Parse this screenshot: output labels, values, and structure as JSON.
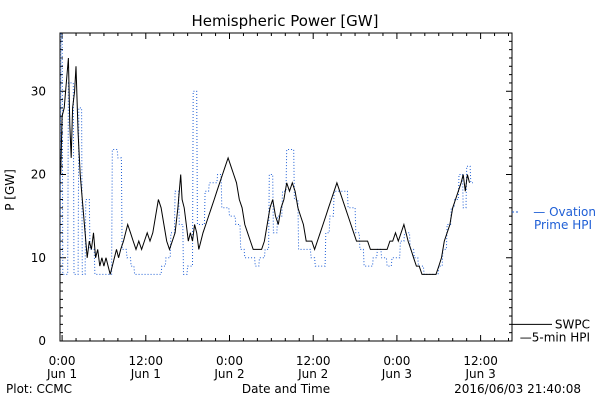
{
  "chart_data": {
    "type": "line",
    "title": "Hemispheric Power [GW]",
    "xlabel": "Date and Time",
    "ylabel": "P [GW]",
    "ylim": [
      0,
      37
    ],
    "xlim": [
      -0.3,
      64.5
    ],
    "yticks": [
      0,
      10,
      20,
      30
    ],
    "xticks": [
      {
        "x": 0,
        "time": "0:00",
        "day": "Jun 1"
      },
      {
        "x": 12,
        "time": "12:00",
        "day": "Jun 1"
      },
      {
        "x": 24,
        "time": "0:00",
        "day": "Jun 2"
      },
      {
        "x": 36,
        "time": "12:00",
        "day": "Jun 2"
      },
      {
        "x": 48,
        "time": "0:00",
        "day": "Jun 3"
      },
      {
        "x": 60,
        "time": "12:00",
        "day": "Jun 3"
      }
    ],
    "grid": false,
    "legend_position": "right",
    "series": [
      {
        "name": "SWPC 5-min HPI",
        "legend_lines": [
          "SWPC",
          "5-min HPI"
        ],
        "color": "#000000",
        "style": "solid",
        "points": [
          [
            -0.2,
            20
          ],
          [
            0.0,
            27
          ],
          [
            0.3,
            28
          ],
          [
            0.6,
            31
          ],
          [
            0.9,
            34
          ],
          [
            1.1,
            26
          ],
          [
            1.3,
            22
          ],
          [
            1.5,
            28
          ],
          [
            1.8,
            30
          ],
          [
            2.0,
            33
          ],
          [
            2.3,
            25
          ],
          [
            2.6,
            20
          ],
          [
            3.0,
            16
          ],
          [
            3.3,
            13
          ],
          [
            3.6,
            10
          ],
          [
            3.9,
            12
          ],
          [
            4.2,
            11
          ],
          [
            4.5,
            13
          ],
          [
            4.8,
            10
          ],
          [
            5.1,
            11
          ],
          [
            5.4,
            9
          ],
          [
            5.7,
            10
          ],
          [
            6.0,
            9
          ],
          [
            6.3,
            10
          ],
          [
            6.6,
            9
          ],
          [
            6.9,
            8
          ],
          [
            7.2,
            9
          ],
          [
            7.5,
            10
          ],
          [
            7.8,
            11
          ],
          [
            8.1,
            10
          ],
          [
            8.4,
            11
          ],
          [
            8.8,
            12
          ],
          [
            9.1,
            13
          ],
          [
            9.4,
            14
          ],
          [
            9.8,
            13
          ],
          [
            10.2,
            12
          ],
          [
            10.6,
            11
          ],
          [
            11.0,
            12
          ],
          [
            11.4,
            11
          ],
          [
            11.8,
            12
          ],
          [
            12.2,
            13
          ],
          [
            12.6,
            12
          ],
          [
            13.0,
            13
          ],
          [
            13.4,
            15
          ],
          [
            13.8,
            17
          ],
          [
            14.2,
            16
          ],
          [
            14.6,
            14
          ],
          [
            15.0,
            12
          ],
          [
            15.4,
            11
          ],
          [
            15.8,
            12
          ],
          [
            16.2,
            13
          ],
          [
            16.6,
            16
          ],
          [
            17.0,
            20
          ],
          [
            17.2,
            17
          ],
          [
            17.5,
            16
          ],
          [
            17.8,
            14
          ],
          [
            18.1,
            12
          ],
          [
            18.4,
            13
          ],
          [
            18.7,
            12
          ],
          [
            19.0,
            14
          ],
          [
            19.3,
            13
          ],
          [
            19.6,
            11
          ],
          [
            19.9,
            12
          ],
          [
            20.2,
            13
          ],
          [
            20.6,
            14
          ],
          [
            21.0,
            15
          ],
          [
            21.4,
            16
          ],
          [
            21.8,
            17
          ],
          [
            22.2,
            18
          ],
          [
            22.6,
            19
          ],
          [
            23.0,
            20
          ],
          [
            23.4,
            21
          ],
          [
            23.8,
            22
          ],
          [
            24.2,
            21
          ],
          [
            24.6,
            20
          ],
          [
            25.0,
            19
          ],
          [
            25.4,
            17
          ],
          [
            25.8,
            16
          ],
          [
            26.2,
            14
          ],
          [
            26.6,
            13
          ],
          [
            27.0,
            12
          ],
          [
            27.4,
            11
          ],
          [
            27.8,
            11
          ],
          [
            28.2,
            11
          ],
          [
            28.6,
            11
          ],
          [
            29.0,
            12
          ],
          [
            29.4,
            14
          ],
          [
            29.8,
            16
          ],
          [
            30.2,
            17
          ],
          [
            30.6,
            15
          ],
          [
            31.0,
            14
          ],
          [
            31.4,
            16
          ],
          [
            31.8,
            17
          ],
          [
            32.2,
            19
          ],
          [
            32.6,
            18
          ],
          [
            33.0,
            19
          ],
          [
            33.4,
            18
          ],
          [
            33.8,
            16
          ],
          [
            34.2,
            15
          ],
          [
            34.6,
            14
          ],
          [
            35.0,
            12
          ],
          [
            35.4,
            12
          ],
          [
            35.8,
            12
          ],
          [
            36.2,
            11
          ],
          [
            36.6,
            12
          ],
          [
            37.0,
            13
          ],
          [
            37.4,
            14
          ],
          [
            37.8,
            15
          ],
          [
            38.2,
            16
          ],
          [
            38.6,
            17
          ],
          [
            39.0,
            18
          ],
          [
            39.4,
            19
          ],
          [
            39.8,
            18
          ],
          [
            40.2,
            17
          ],
          [
            40.6,
            16
          ],
          [
            41.0,
            15
          ],
          [
            41.4,
            14
          ],
          [
            41.8,
            13
          ],
          [
            42.2,
            12
          ],
          [
            42.6,
            12
          ],
          [
            43.0,
            12
          ],
          [
            43.4,
            12
          ],
          [
            43.8,
            12
          ],
          [
            44.2,
            11
          ],
          [
            44.6,
            11
          ],
          [
            45.0,
            11
          ],
          [
            45.4,
            11
          ],
          [
            45.8,
            11
          ],
          [
            46.2,
            11
          ],
          [
            46.6,
            11
          ],
          [
            47.0,
            12
          ],
          [
            47.4,
            12
          ],
          [
            47.8,
            13
          ],
          [
            48.2,
            12
          ],
          [
            48.6,
            13
          ],
          [
            49.0,
            14
          ],
          [
            49.3,
            13
          ],
          [
            49.6,
            12
          ],
          [
            50.0,
            11
          ],
          [
            50.4,
            10
          ],
          [
            50.8,
            9
          ],
          [
            51.2,
            9
          ],
          [
            51.6,
            8
          ],
          [
            52.0,
            8
          ],
          [
            52.4,
            8
          ],
          [
            52.8,
            8
          ],
          [
            53.2,
            8
          ],
          [
            53.6,
            8
          ],
          [
            54.0,
            9
          ],
          [
            54.4,
            10
          ],
          [
            54.8,
            12
          ],
          [
            55.2,
            13
          ],
          [
            55.6,
            14
          ],
          [
            56.0,
            16
          ],
          [
            56.4,
            17
          ],
          [
            56.8,
            18
          ],
          [
            57.2,
            19
          ],
          [
            57.5,
            20
          ],
          [
            57.8,
            18
          ],
          [
            58.1,
            20
          ],
          [
            58.4,
            19
          ]
        ]
      },
      {
        "name": "Ovation Prime HPI",
        "legend_lines": [
          "Ovation",
          "Prime HPI"
        ],
        "color": "#1f5fd6",
        "style": "dotted",
        "points": [
          [
            -0.3,
            8
          ],
          [
            -0.15,
            38
          ],
          [
            0.0,
            38
          ],
          [
            0.1,
            8
          ],
          [
            0.8,
            8
          ],
          [
            0.9,
            31
          ],
          [
            1.6,
            31
          ],
          [
            1.7,
            8
          ],
          [
            2.3,
            8
          ],
          [
            2.4,
            28
          ],
          [
            2.8,
            28
          ],
          [
            2.9,
            8
          ],
          [
            3.3,
            8
          ],
          [
            3.4,
            17
          ],
          [
            3.9,
            17
          ],
          [
            4.0,
            11
          ],
          [
            4.6,
            11
          ],
          [
            4.7,
            8
          ],
          [
            7.1,
            8
          ],
          [
            7.2,
            23
          ],
          [
            7.9,
            23
          ],
          [
            8.0,
            22
          ],
          [
            8.5,
            22
          ],
          [
            8.6,
            11
          ],
          [
            9.2,
            11
          ],
          [
            9.3,
            10
          ],
          [
            9.8,
            10
          ],
          [
            9.9,
            9
          ],
          [
            10.3,
            9
          ],
          [
            10.4,
            8
          ],
          [
            14.2,
            8
          ],
          [
            14.3,
            9
          ],
          [
            14.8,
            9
          ],
          [
            14.9,
            10
          ],
          [
            15.5,
            10
          ],
          [
            15.6,
            13
          ],
          [
            16.1,
            13
          ],
          [
            16.2,
            18
          ],
          [
            16.7,
            18
          ],
          [
            16.8,
            14
          ],
          [
            17.3,
            14
          ],
          [
            17.4,
            8
          ],
          [
            17.9,
            8
          ],
          [
            18.0,
            9
          ],
          [
            18.7,
            9
          ],
          [
            18.8,
            30
          ],
          [
            19.3,
            30
          ],
          [
            19.4,
            14
          ],
          [
            20.4,
            14
          ],
          [
            20.5,
            18
          ],
          [
            21.0,
            18
          ],
          [
            21.1,
            19
          ],
          [
            22.2,
            19
          ],
          [
            22.3,
            20
          ],
          [
            22.8,
            20
          ],
          [
            22.9,
            16
          ],
          [
            23.9,
            16
          ],
          [
            24.0,
            15
          ],
          [
            24.8,
            15
          ],
          [
            24.9,
            14
          ],
          [
            25.5,
            14
          ],
          [
            25.6,
            11
          ],
          [
            26.1,
            11
          ],
          [
            26.2,
            10
          ],
          [
            27.6,
            10
          ],
          [
            27.7,
            9
          ],
          [
            28.2,
            9
          ],
          [
            28.3,
            10
          ],
          [
            29.0,
            10
          ],
          [
            29.1,
            11
          ],
          [
            29.6,
            11
          ],
          [
            29.7,
            20
          ],
          [
            30.2,
            20
          ],
          [
            30.3,
            13
          ],
          [
            30.8,
            13
          ],
          [
            30.9,
            15
          ],
          [
            31.5,
            15
          ],
          [
            31.6,
            18
          ],
          [
            32.1,
            18
          ],
          [
            32.2,
            23
          ],
          [
            33.2,
            23
          ],
          [
            33.3,
            17
          ],
          [
            33.8,
            17
          ],
          [
            33.9,
            11
          ],
          [
            35.6,
            11
          ],
          [
            35.7,
            10
          ],
          [
            36.2,
            10
          ],
          [
            36.3,
            9
          ],
          [
            37.7,
            9
          ],
          [
            37.8,
            13
          ],
          [
            38.3,
            13
          ],
          [
            38.4,
            15
          ],
          [
            38.9,
            15
          ],
          [
            39.0,
            18
          ],
          [
            40.9,
            18
          ],
          [
            41.0,
            16
          ],
          [
            42.0,
            16
          ],
          [
            42.1,
            13
          ],
          [
            42.6,
            13
          ],
          [
            42.7,
            11
          ],
          [
            43.2,
            11
          ],
          [
            43.3,
            9
          ],
          [
            44.5,
            9
          ],
          [
            44.6,
            10
          ],
          [
            45.1,
            10
          ],
          [
            45.2,
            11
          ],
          [
            45.7,
            11
          ],
          [
            45.8,
            10
          ],
          [
            46.5,
            10
          ],
          [
            46.6,
            9
          ],
          [
            47.2,
            9
          ],
          [
            47.3,
            10
          ],
          [
            48.4,
            10
          ],
          [
            48.5,
            12
          ],
          [
            49.0,
            12
          ],
          [
            49.1,
            13
          ],
          [
            49.8,
            13
          ],
          [
            49.9,
            11
          ],
          [
            50.4,
            11
          ],
          [
            50.5,
            10
          ],
          [
            51.0,
            10
          ],
          [
            51.1,
            9
          ],
          [
            51.8,
            9
          ],
          [
            51.9,
            8
          ],
          [
            53.9,
            8
          ],
          [
            54.0,
            9
          ],
          [
            54.5,
            9
          ],
          [
            54.6,
            11
          ],
          [
            55.1,
            11
          ],
          [
            55.2,
            14
          ],
          [
            55.7,
            14
          ],
          [
            55.8,
            16
          ],
          [
            56.2,
            16
          ],
          [
            56.3,
            17
          ],
          [
            56.8,
            17
          ],
          [
            56.9,
            20
          ],
          [
            57.4,
            20
          ],
          [
            57.5,
            16
          ],
          [
            57.9,
            16
          ],
          [
            58.0,
            21
          ],
          [
            58.5,
            21
          ],
          [
            58.6,
            19
          ],
          [
            58.9,
            19
          ]
        ]
      }
    ],
    "legend_markers": {
      "ovation": "— ",
      "swpc": "—"
    }
  },
  "footer": {
    "credit": "Plot: CCMC",
    "timestamp": "2016/06/03 21:40:08"
  }
}
